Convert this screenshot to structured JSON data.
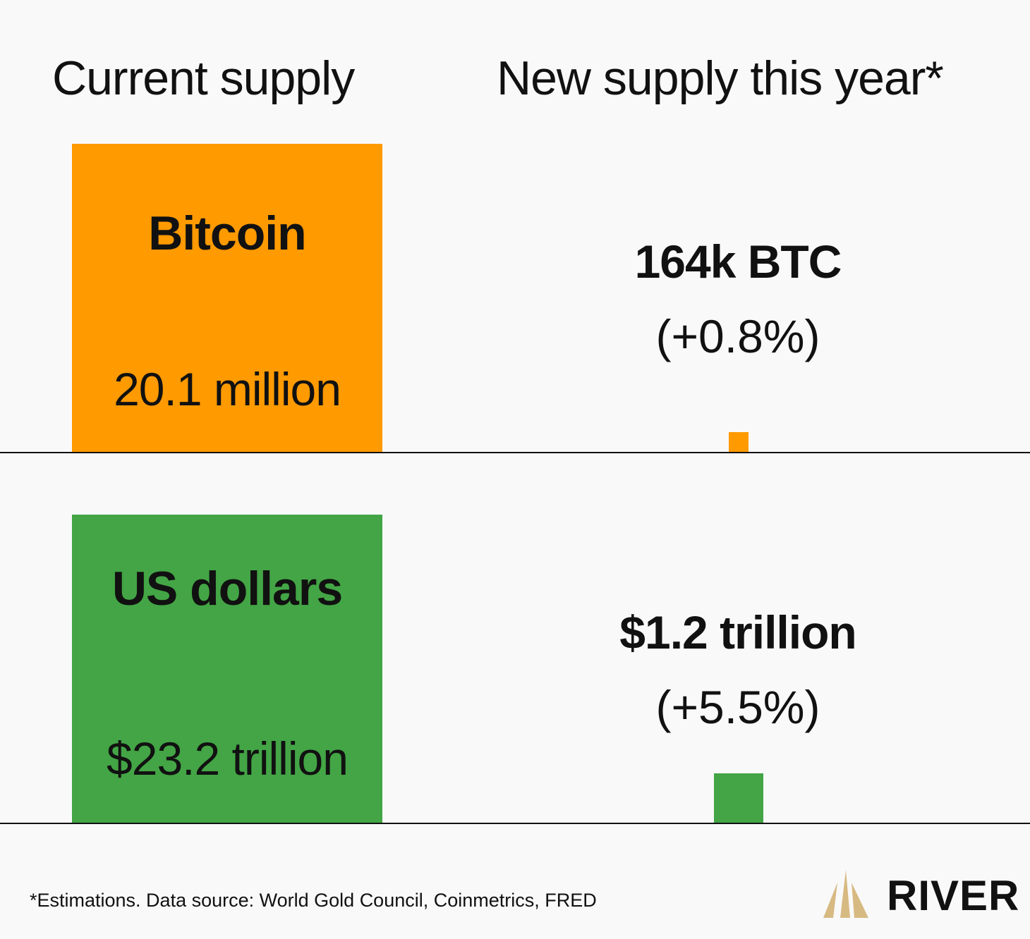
{
  "headings": {
    "current": "Current supply",
    "new": "New supply this year*"
  },
  "bitcoin": {
    "name": "Bitcoin",
    "current_value": "20.1 million",
    "new_value": "164k BTC",
    "new_pct": "(+0.8%)",
    "color": "#ff9a00"
  },
  "usd": {
    "name": "US dollars",
    "current_value": "$23.2 trillion",
    "new_value": "$1.2 trillion",
    "new_pct": "(+5.5%)",
    "color": "#43a545"
  },
  "footnote": "*Estimations. Data source: World Gold Council, Coinmetrics, FRED",
  "logo": {
    "text": "RIVER",
    "icon": "river-mountain-icon",
    "color": "#d7b982"
  },
  "chart_data": {
    "type": "bar",
    "title": "",
    "groups": [
      {
        "name": "Bitcoin",
        "current_supply": 20.1,
        "current_unit": "million BTC",
        "new_supply": 0.164,
        "new_unit": "million BTC",
        "new_pct": 0.8
      },
      {
        "name": "US dollars",
        "current_supply": 23.2,
        "current_unit": "trillion USD",
        "new_supply": 1.2,
        "new_unit": "trillion USD",
        "new_pct": 5.5
      }
    ]
  }
}
